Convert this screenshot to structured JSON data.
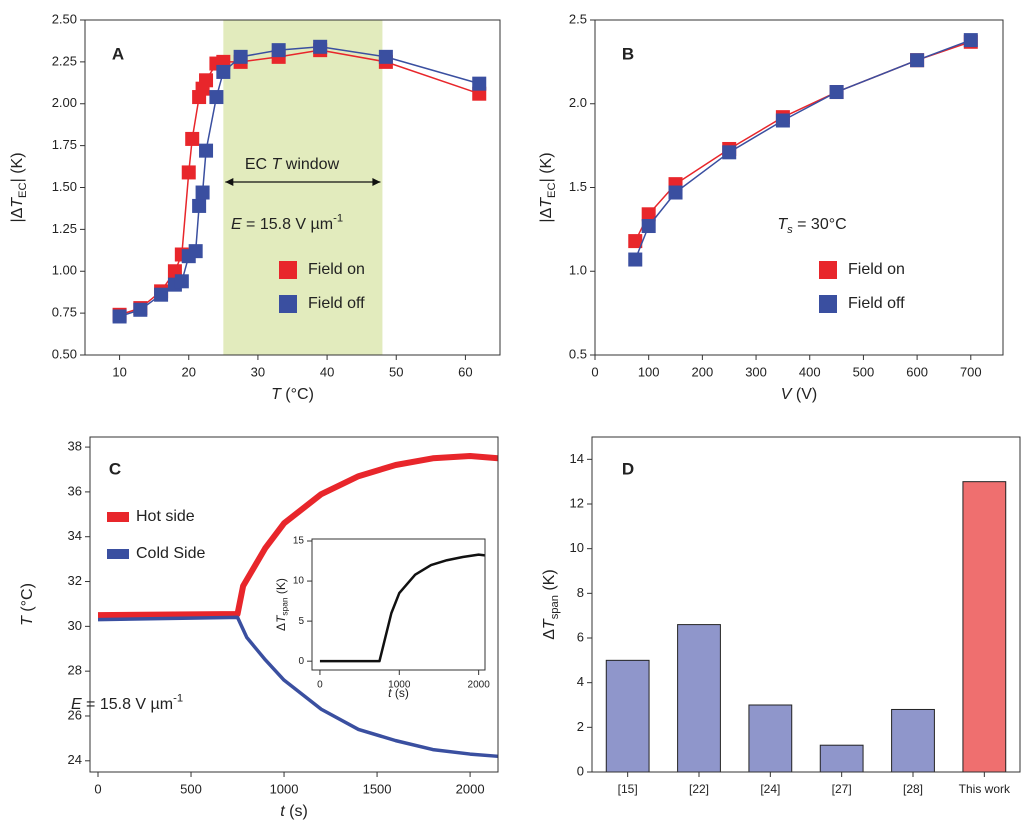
{
  "chart_data": [
    {
      "type": "line",
      "title": "A",
      "xlabel": [
        {
          "t": "T",
          "style": "italic"
        },
        {
          "t": " (°C)"
        }
      ],
      "ylabel": [
        {
          "t": "|Δ"
        },
        {
          "t": "T",
          "style": "italic"
        },
        {
          "t": "EC",
          "style": "sub"
        },
        {
          "t": "| (K)"
        }
      ],
      "xlim": [
        5,
        65
      ],
      "xticks": [
        10,
        20,
        30,
        40,
        50,
        60
      ],
      "ylim": [
        0.5,
        2.5
      ],
      "yticks": [
        {
          "value": 0.5,
          "label": "0.50"
        },
        0.75,
        {
          "value": 1,
          "label": "1.00"
        },
        1.25,
        {
          "value": 1.5,
          "label": "1.50"
        },
        1.75,
        {
          "value": 2,
          "label": "2.00"
        },
        2.25,
        {
          "value": 2.5,
          "label": "2.50"
        }
      ],
      "markers": "square",
      "legend": "lower right",
      "highlight": {
        "xrange": [
          25,
          48
        ],
        "color": "#e2ebbd"
      },
      "annotations": [
        [
          {
            "t": "EC "
          },
          {
            "t": "T",
            "style": "italic"
          },
          {
            "t": " window"
          }
        ],
        [
          {
            "t": "E",
            "style": "italic"
          },
          {
            "t": " = 15.8 V µm"
          },
          {
            "t": "-1",
            "style": "sup"
          }
        ]
      ],
      "series": [
        {
          "name": "Field on",
          "color": "#e8262b",
          "x": [
            10,
            13,
            16,
            18,
            19,
            20,
            20.5,
            21.5,
            22,
            22.5,
            24,
            25,
            27.5,
            33,
            39,
            48.5,
            62
          ],
          "values": [
            0.74,
            0.78,
            0.88,
            1.0,
            1.1,
            1.59,
            1.79,
            2.04,
            2.09,
            2.14,
            2.24,
            2.25,
            2.25,
            2.28,
            2.32,
            2.25,
            2.06
          ]
        },
        {
          "name": "Field off",
          "color": "#3a4fa0",
          "x": [
            10,
            13,
            16,
            18,
            19,
            20,
            21,
            21.5,
            22,
            22.5,
            24,
            25,
            27.5,
            33,
            39,
            48.5,
            62
          ],
          "values": [
            0.73,
            0.77,
            0.86,
            0.92,
            0.94,
            1.09,
            1.12,
            1.39,
            1.47,
            1.72,
            2.04,
            2.19,
            2.28,
            2.32,
            2.34,
            2.28,
            2.12
          ]
        }
      ]
    },
    {
      "type": "line",
      "title": "B",
      "xlabel": [
        {
          "t": "V",
          "style": "italic"
        },
        {
          "t": " (V)"
        }
      ],
      "ylabel": [
        {
          "t": "|Δ"
        },
        {
          "t": "T",
          "style": "italic"
        },
        {
          "t": "EC",
          "style": "sub"
        },
        {
          "t": "| (K)"
        }
      ],
      "xlim": [
        0,
        760
      ],
      "xticks": [
        0,
        100,
        200,
        300,
        400,
        500,
        600,
        700
      ],
      "ylim": [
        0.5,
        2.5
      ],
      "yticks": [
        0.5,
        {
          "value": 1,
          "label": "1.0"
        },
        1.5,
        {
          "value": 2,
          "label": "2.0"
        },
        2.5
      ],
      "markers": "square",
      "legend": "lower right",
      "annotations": [
        [
          {
            "t": "T",
            "style": "italic"
          },
          {
            "t": "s",
            "style": "sub-italic"
          },
          {
            "t": " = 30°C"
          }
        ]
      ],
      "series": [
        {
          "name": "Field on",
          "color": "#e8262b",
          "x": [
            75,
            100,
            150,
            250,
            350,
            450,
            600,
            700
          ],
          "values": [
            1.18,
            1.34,
            1.52,
            1.73,
            1.92,
            2.07,
            2.26,
            2.37
          ]
        },
        {
          "name": "Field off",
          "color": "#3a4fa0",
          "x": [
            75,
            100,
            150,
            250,
            350,
            450,
            600,
            700
          ],
          "values": [
            1.07,
            1.27,
            1.47,
            1.71,
            1.9,
            2.07,
            2.26,
            2.38
          ]
        }
      ]
    },
    {
      "type": "line",
      "title": "C",
      "xlabel": [
        {
          "t": "t",
          "style": "italic"
        },
        {
          "t": " (s)"
        }
      ],
      "ylabel": [
        {
          "t": "T",
          "style": "italic"
        },
        {
          "t": " (°C)"
        }
      ],
      "xlim": [
        -43,
        2150
      ],
      "xticks": [
        0,
        500,
        1000,
        1500,
        2000
      ],
      "ylim": [
        23.5,
        38.45
      ],
      "yticks": [
        24,
        26,
        28,
        30,
        32,
        34,
        36,
        38
      ],
      "legend": "upper left",
      "annotations": [
        [
          {
            "t": "E",
            "style": "italic"
          },
          {
            "t": " = 15.8 V µm"
          },
          {
            "t": "-1",
            "style": "sup"
          }
        ]
      ],
      "series": [
        {
          "name": "Hot side",
          "color": "#e8262b",
          "x": [
            0,
            750,
            780,
            900,
            1000,
            1200,
            1400,
            1600,
            1800,
            2000,
            2150
          ],
          "values": [
            30.5,
            30.55,
            31.8,
            33.5,
            34.6,
            35.9,
            36.7,
            37.2,
            37.5,
            37.6,
            37.5
          ]
        },
        {
          "name": "Cold Side",
          "color": "#3a4fa0",
          "x": [
            0,
            750,
            800,
            900,
            1000,
            1200,
            1400,
            1600,
            1800,
            2000,
            2150
          ],
          "values": [
            30.3,
            30.4,
            29.5,
            28.5,
            27.6,
            26.3,
            25.4,
            24.9,
            24.5,
            24.3,
            24.2
          ]
        }
      ]
    },
    {
      "type": "line",
      "xlabel": [
        {
          "t": "t",
          "style": "italic"
        },
        {
          "t": " (s)"
        }
      ],
      "ylabel": [
        {
          "t": "Δ"
        },
        {
          "t": "T",
          "style": "italic"
        },
        {
          "t": "span",
          "style": "sub"
        },
        {
          "t": " (K)"
        }
      ],
      "xlim": [
        -100,
        2080
      ],
      "xticks": [
        0,
        1000,
        2000
      ],
      "ylim": [
        -1.1,
        15.25
      ],
      "yticks": [
        0,
        5,
        10,
        15
      ],
      "series": [
        {
          "color": "#111111",
          "x": [
            0,
            750,
            800,
            900,
            1000,
            1200,
            1400,
            1600,
            1800,
            2000,
            2080
          ],
          "values": [
            0,
            0,
            2,
            6,
            8.5,
            10.8,
            12,
            12.6,
            13,
            13.3,
            13.2
          ]
        }
      ]
    },
    {
      "type": "bar",
      "title": "D",
      "ylabel": [
        {
          "t": "Δ"
        },
        {
          "t": "T",
          "style": "italic"
        },
        {
          "t": "span",
          "style": "sub"
        },
        {
          "t": " (K)"
        }
      ],
      "categories": [
        "[15]",
        "[22]",
        "[24]",
        "[27]",
        "[28]",
        "This work"
      ],
      "values": [
        5.0,
        6.6,
        3.0,
        1.2,
        2.8,
        13.0
      ],
      "colors": [
        "#8f96cb",
        "#8f96cb",
        "#8f96cb",
        "#8f96cb",
        "#8f96cb",
        "#ef6f6f"
      ],
      "ylim": [
        0,
        15
      ],
      "yticks": [
        0,
        2,
        4,
        6,
        8,
        10,
        12,
        14
      ]
    }
  ]
}
